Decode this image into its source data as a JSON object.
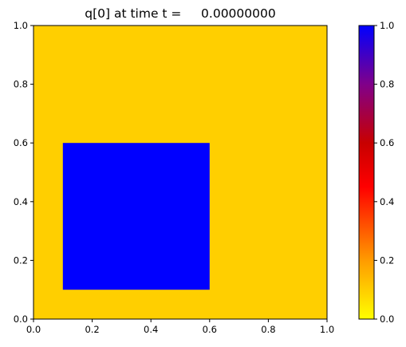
{
  "chart_data": {
    "type": "heatmap",
    "title": "q[0] at time t =     0.00000000",
    "xlabel": "",
    "ylabel": "",
    "xlim": [
      0.0,
      1.0
    ],
    "ylim": [
      0.0,
      1.0
    ],
    "x_ticks": [
      "0.0",
      "0.2",
      "0.4",
      "0.6",
      "0.8",
      "1.0"
    ],
    "y_ticks": [
      "0.0",
      "0.2",
      "0.4",
      "0.6",
      "0.8",
      "1.0"
    ],
    "grid": false,
    "background_value": 0.0,
    "regions": [
      {
        "x": [
          0.1,
          0.6
        ],
        "y": [
          0.1,
          0.6
        ],
        "value": 1.0
      }
    ],
    "colorbar": {
      "range": [
        0.0,
        1.0
      ],
      "ticks": [
        "0.0",
        "0.2",
        "0.4",
        "0.6",
        "0.8",
        "1.0"
      ],
      "colormap": [
        {
          "value": 0.0,
          "color": "#ffff00"
        },
        {
          "value": 0.2,
          "color": "#ff9b00"
        },
        {
          "value": 0.45,
          "color": "#ff0000"
        },
        {
          "value": 0.6,
          "color": "#c80000"
        },
        {
          "value": 0.8,
          "color": "#80008a"
        },
        {
          "value": 1.0,
          "color": "#0000ff"
        }
      ]
    },
    "colors": {
      "background_field": "#ffcf00",
      "region_field": "#0000ff"
    }
  }
}
